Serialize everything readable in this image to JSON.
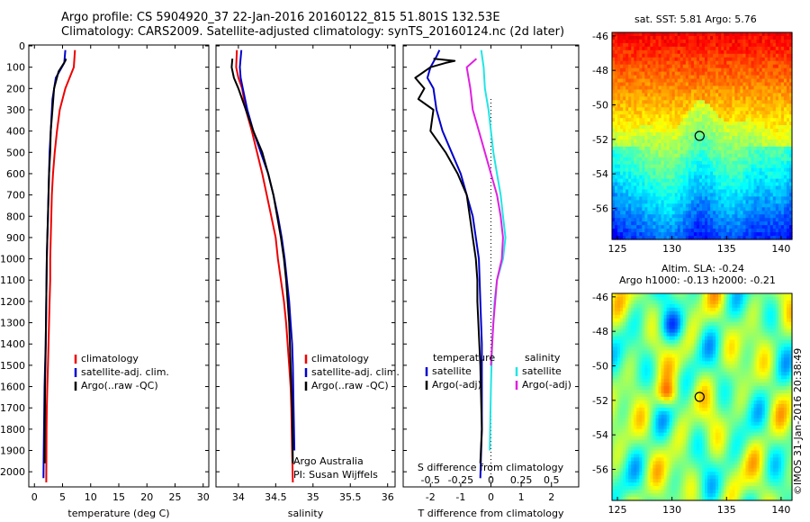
{
  "header": {
    "line1": "Argo profile: CS 5904920_37 22-Jan-2016 20160122_815 51.801S 132.53E",
    "line2": "Climatology: CARS2009. Satellite-adjusted climatology: synTS_20160124.nc (2d later)"
  },
  "side_note": "©IMOS 31-Jan-2016 20:38:49",
  "colors": {
    "climatology": "#ee0000",
    "satellite": "#0000cc",
    "argo": "#000000",
    "salinity_satellite": "#22e5e5",
    "salinity_argo": "#e020e0"
  },
  "chart_data": [
    {
      "id": "temperature",
      "type": "line",
      "xlabel": "temperature (deg C)",
      "ylim": [
        2050,
        0
      ],
      "xlim": [
        -1,
        31
      ],
      "xticks": [
        "0",
        "5",
        "10",
        "15",
        "20",
        "25",
        "30"
      ],
      "xtick_values": [
        0,
        5,
        10,
        15,
        20,
        25,
        30
      ],
      "yticks": [
        "0",
        "100",
        "200",
        "300",
        "400",
        "500",
        "600",
        "700",
        "800",
        "900",
        "1000",
        "1100",
        "1200",
        "1300",
        "1400",
        "1500",
        "1600",
        "1700",
        "1800",
        "1900",
        "2000"
      ],
      "ytick_values": [
        0,
        100,
        200,
        300,
        400,
        500,
        600,
        700,
        800,
        900,
        1000,
        1100,
        1200,
        1300,
        1400,
        1500,
        1600,
        1700,
        1800,
        1900,
        2000
      ],
      "legend": [
        "climatology",
        "satellite-adj. clim.",
        "Argo(..raw -QC)"
      ],
      "legend_position": "lower-center",
      "series": [
        {
          "name": "climatology",
          "color_key": "climatology",
          "x": [
            7.2,
            7.0,
            5.5,
            4.5,
            4.0,
            3.6,
            3.3,
            3.1,
            3.0,
            2.9,
            2.8,
            2.8,
            2.7,
            2.6,
            2.5,
            2.4,
            2.3,
            2.2,
            2.15,
            2.1
          ],
          "y": [
            20,
            100,
            200,
            300,
            400,
            500,
            600,
            700,
            800,
            900,
            1000,
            1100,
            1200,
            1300,
            1400,
            1500,
            1600,
            1700,
            1800,
            2050
          ]
        },
        {
          "name": "satellite-adj. clim.",
          "color_key": "satellite",
          "x": [
            5.5,
            5.3,
            3.8,
            3.2,
            2.9,
            2.7,
            2.6,
            2.5,
            2.4,
            2.3,
            2.2,
            2.1,
            2.0,
            1.9,
            1.8,
            1.7,
            1.65,
            1.6
          ],
          "y": [
            20,
            80,
            150,
            250,
            400,
            500,
            600,
            700,
            800,
            900,
            1000,
            1200,
            1400,
            1500,
            1600,
            1800,
            1900,
            2030
          ]
        },
        {
          "name": "Argo(..raw -QC)",
          "color_key": "argo",
          "x": [
            5.6,
            5.5,
            4.3,
            3.5,
            3.2,
            2.9,
            2.8,
            2.6,
            2.5,
            2.4,
            2.3,
            2.2,
            2.1,
            2.0,
            1.9,
            1.85,
            1.8
          ],
          "y": [
            60,
            70,
            120,
            200,
            300,
            400,
            500,
            600,
            700,
            800,
            900,
            1000,
            1200,
            1400,
            1600,
            1800,
            1960
          ]
        }
      ]
    },
    {
      "id": "salinity",
      "type": "line",
      "xlabel": "salinity",
      "ylim": [
        2050,
        0
      ],
      "xlim": [
        33.7,
        36.1
      ],
      "xticks": [
        "34",
        "34.5",
        "35",
        "35.5",
        "36"
      ],
      "xtick_values": [
        34,
        34.5,
        35,
        35.5,
        36
      ],
      "legend": [
        "climatology",
        "satellite-adj. clim.",
        "Argo(..raw -QC)"
      ],
      "legend_position": "lower-right",
      "annotation": [
        "Argo Australia",
        "PI: Susan Wijffels"
      ],
      "series": [
        {
          "name": "climatology",
          "color_key": "climatology",
          "x": [
            33.98,
            33.97,
            34.0,
            34.05,
            34.1,
            34.18,
            34.25,
            34.32,
            34.38,
            34.44,
            34.5,
            34.53,
            34.57,
            34.61,
            34.64,
            34.66,
            34.68,
            34.7,
            34.71,
            34.72,
            34.73
          ],
          "y": [
            20,
            100,
            150,
            200,
            300,
            400,
            500,
            600,
            700,
            800,
            900,
            1000,
            1100,
            1200,
            1300,
            1400,
            1500,
            1600,
            1700,
            1900,
            2050
          ]
        },
        {
          "name": "satellite-adj. clim.",
          "color_key": "satellite",
          "x": [
            34.04,
            34.02,
            34.03,
            34.06,
            34.12,
            34.2,
            34.3,
            34.4,
            34.47,
            34.53,
            34.58,
            34.62,
            34.65,
            34.68,
            34.7,
            34.72,
            34.73,
            34.74,
            34.75
          ],
          "y": [
            20,
            100,
            150,
            200,
            300,
            400,
            500,
            600,
            700,
            800,
            900,
            1000,
            1100,
            1200,
            1300,
            1400,
            1500,
            1700,
            1900
          ]
        },
        {
          "name": "Argo(..raw -QC)",
          "color_key": "argo",
          "x": [
            33.92,
            33.91,
            33.94,
            34.0,
            34.1,
            34.2,
            34.32,
            34.4,
            34.47,
            34.52,
            34.57,
            34.61,
            34.64,
            34.66,
            34.68,
            34.7,
            34.72,
            34.73
          ],
          "y": [
            60,
            100,
            150,
            200,
            300,
            400,
            500,
            600,
            700,
            800,
            900,
            1000,
            1100,
            1200,
            1300,
            1500,
            1700,
            1960
          ]
        }
      ]
    },
    {
      "id": "differences",
      "type": "line",
      "xlabel": "T difference from climatology",
      "xlabel_top": "S difference from climatology",
      "ylim": [
        2050,
        0
      ],
      "xlim": [
        -2.9,
        2.9
      ],
      "xticks": [
        "-2",
        "-1",
        "0",
        "1",
        "2"
      ],
      "xtick_values": [
        -2,
        -1,
        0,
        1,
        2
      ],
      "s_xticks": [
        "-0.5",
        "-0.25",
        "0",
        "0.25",
        "0.5"
      ],
      "s_xtick_values": [
        -0.5,
        -0.25,
        0,
        0.25,
        0.5
      ],
      "legend_temperature_title": "temperature",
      "legend_salinity_title": "salinity",
      "legend": [
        "satellite",
        "Argo(-adj)",
        "satellite",
        "Argo(-adj)"
      ],
      "legend_position": "lower-center",
      "series": [
        {
          "name": "satellite",
          "group": "temperature",
          "color_key": "satellite",
          "x": [
            -1.7,
            -1.8,
            -2.0,
            -2.1,
            -1.9,
            -1.8,
            -1.6,
            -1.3,
            -1.0,
            -0.8,
            -0.6,
            -0.5,
            -0.4,
            -0.35,
            -0.3,
            -0.3,
            -0.3,
            -0.35
          ],
          "y": [
            20,
            50,
            100,
            150,
            200,
            300,
            400,
            500,
            600,
            700,
            800,
            900,
            1000,
            1200,
            1400,
            1600,
            1800,
            2030
          ]
        },
        {
          "name": "Argo(-adj)",
          "group": "temperature",
          "color_key": "argo",
          "x": [
            -1.9,
            -1.2,
            -1.5,
            -2.0,
            -2.5,
            -2.2,
            -2.4,
            -1.9,
            -2.0,
            -1.5,
            -1.1,
            -0.8,
            -0.7,
            -0.6,
            -0.5,
            -0.45,
            -0.45,
            -0.35,
            -0.3,
            -0.35
          ],
          "y": [
            60,
            70,
            80,
            100,
            150,
            200,
            250,
            300,
            400,
            500,
            600,
            700,
            800,
            900,
            1000,
            1100,
            1200,
            1500,
            1800,
            1960
          ]
        },
        {
          "name": "satellite",
          "group": "salinity",
          "color_key": "salinity_satellite",
          "x": [
            -0.08,
            -0.06,
            -0.05,
            -0.02,
            0.0,
            0.02,
            0.05,
            0.08,
            0.1,
            0.12,
            0.1,
            0.05,
            0.03,
            0.01,
            0.0,
            -0.01
          ],
          "y": [
            20,
            100,
            200,
            300,
            400,
            500,
            600,
            700,
            800,
            900,
            1000,
            1100,
            1200,
            1400,
            1600,
            1900
          ]
        },
        {
          "name": "Argo(-adj)",
          "group": "salinity",
          "color_key": "salinity_argo",
          "x": [
            -0.12,
            -0.2,
            -0.17,
            -0.15,
            -0.1,
            -0.05,
            0.0,
            0.05,
            0.08,
            0.1,
            0.09,
            0.05,
            0.02,
            0.0
          ],
          "y": [
            60,
            100,
            200,
            300,
            400,
            500,
            600,
            700,
            800,
            900,
            1000,
            1100,
            1300,
            1500
          ]
        }
      ]
    },
    {
      "id": "sst_map",
      "type": "heatmap",
      "title": "sat. SST: 5.81  Argo: 5.76",
      "xlim": [
        124.5,
        141
      ],
      "ylim": [
        -57.8,
        -45.8
      ],
      "xticks": [
        "125",
        "130",
        "135",
        "140"
      ],
      "xtick_values": [
        125,
        130,
        135,
        140
      ],
      "yticks": [
        "-46",
        "-48",
        "-50",
        "-52",
        "-54",
        "-56"
      ],
      "ytick_values": [
        -46,
        -48,
        -50,
        -52,
        -54,
        -56
      ],
      "marker": {
        "lon": 132.53,
        "lat": -51.8
      },
      "colormap": "jet"
    },
    {
      "id": "sla_map",
      "type": "heatmap",
      "title": "Altim. SLA: -0.24",
      "subtitle": "Argo h1000: -0.13  h2000: -0.21",
      "xlim": [
        124.5,
        141
      ],
      "ylim": [
        -57.8,
        -45.8
      ],
      "xticks": [
        "125",
        "130",
        "135",
        "140"
      ],
      "xtick_values": [
        125,
        130,
        135,
        140
      ],
      "yticks": [
        "-46",
        "-48",
        "-50",
        "-52",
        "-54",
        "-56"
      ],
      "ytick_values": [
        -46,
        -48,
        -50,
        -52,
        -54,
        -56
      ],
      "marker": {
        "lon": 132.53,
        "lat": -51.8
      },
      "colormap": "jet"
    }
  ]
}
